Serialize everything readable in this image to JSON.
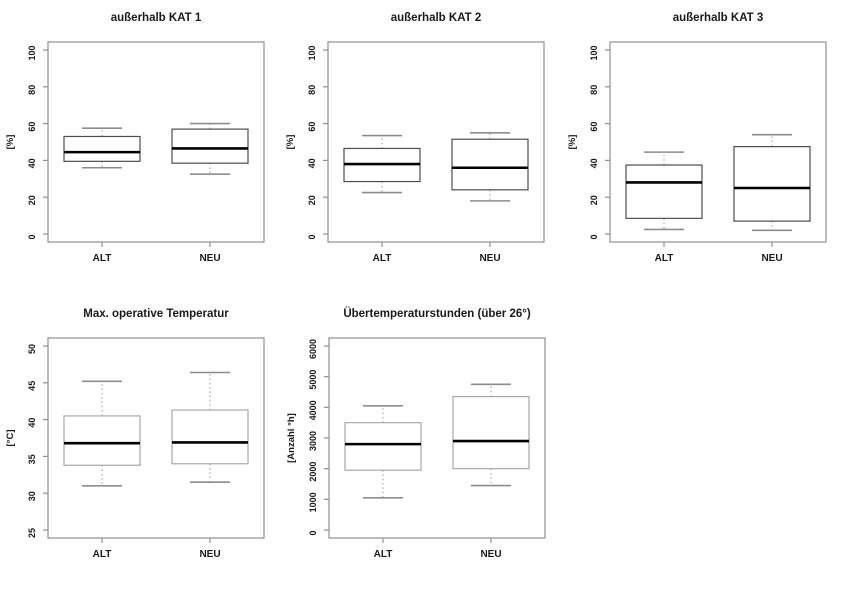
{
  "figure": {
    "background": "#ffffff",
    "text_color": "#1a1a1a"
  },
  "colors": {
    "frame": "#909090",
    "tick_mark": "#909090",
    "median": "#000000",
    "whisker": "#9a9a9a",
    "whisker_cap": "#8c8c8c",
    "box_fill": "#ffffff",
    "box_border_dark": "#4d4d4d",
    "box_border_light": "#a8a8a8"
  },
  "chart_data": [
    {
      "type": "boxplot",
      "title": "außerhalb KAT 1",
      "ylabel": "[%]",
      "categories": [
        "ALT",
        "NEU"
      ],
      "yticks": [
        0,
        20,
        40,
        60,
        80,
        100
      ],
      "ylim": [
        0,
        100
      ],
      "box_border": "#4d4d4d",
      "series": [
        {
          "name": "ALT",
          "whisker_low": 36,
          "q1": 39.5,
          "median": 44.5,
          "q3": 53,
          "whisker_high": 57.5
        },
        {
          "name": "NEU",
          "whisker_low": 32.5,
          "q1": 38.5,
          "median": 46.5,
          "q3": 57,
          "whisker_high": 60
        }
      ]
    },
    {
      "type": "boxplot",
      "title": "außerhalb KAT 2",
      "ylabel": "[%]",
      "categories": [
        "ALT",
        "NEU"
      ],
      "yticks": [
        0,
        20,
        40,
        60,
        80,
        100
      ],
      "ylim": [
        0,
        100
      ],
      "box_border": "#4d4d4d",
      "series": [
        {
          "name": "ALT",
          "whisker_low": 22.5,
          "q1": 28.5,
          "median": 38,
          "q3": 46.5,
          "whisker_high": 53.5
        },
        {
          "name": "NEU",
          "whisker_low": 18,
          "q1": 24,
          "median": 36,
          "q3": 51.5,
          "whisker_high": 55
        }
      ]
    },
    {
      "type": "boxplot",
      "title": "außerhalb KAT 3",
      "ylabel": "[%]",
      "categories": [
        "ALT",
        "NEU"
      ],
      "yticks": [
        0,
        20,
        40,
        60,
        80,
        100
      ],
      "ylim": [
        0,
        100
      ],
      "box_border": "#4d4d4d",
      "series": [
        {
          "name": "ALT",
          "whisker_low": 2.5,
          "q1": 8.5,
          "median": 28,
          "q3": 37.5,
          "whisker_high": 44.5
        },
        {
          "name": "NEU",
          "whisker_low": 2,
          "q1": 7,
          "median": 25,
          "q3": 47.5,
          "whisker_high": 54
        }
      ]
    },
    {
      "type": "boxplot",
      "title": "Max. operative Temperatur",
      "ylabel": "[°C]",
      "categories": [
        "ALT",
        "NEU"
      ],
      "yticks": [
        25,
        30,
        35,
        40,
        45,
        50
      ],
      "ylim": [
        25,
        50
      ],
      "box_border": "#a8a8a8",
      "series": [
        {
          "name": "ALT",
          "whisker_low": 31,
          "q1": 33.8,
          "median": 36.8,
          "q3": 40.5,
          "whisker_high": 45.2
        },
        {
          "name": "NEU",
          "whisker_low": 31.5,
          "q1": 34,
          "median": 36.9,
          "q3": 41.3,
          "whisker_high": 46.4
        }
      ]
    },
    {
      "type": "boxplot",
      "title": "Übertemperaturstunden (über 26°)",
      "ylabel": "[Anzahl °h]",
      "categories": [
        "ALT",
        "NEU"
      ],
      "yticks": [
        0,
        1000,
        2000,
        3000,
        4000,
        5000,
        6000
      ],
      "ylim": [
        0,
        6000
      ],
      "box_border": "#a8a8a8",
      "series": [
        {
          "name": "ALT",
          "whisker_low": 1050,
          "q1": 1950,
          "median": 2800,
          "q3": 3500,
          "whisker_high": 4050
        },
        {
          "name": "NEU",
          "whisker_low": 1450,
          "q1": 2000,
          "median": 2900,
          "q3": 4350,
          "whisker_high": 4750
        }
      ]
    }
  ]
}
